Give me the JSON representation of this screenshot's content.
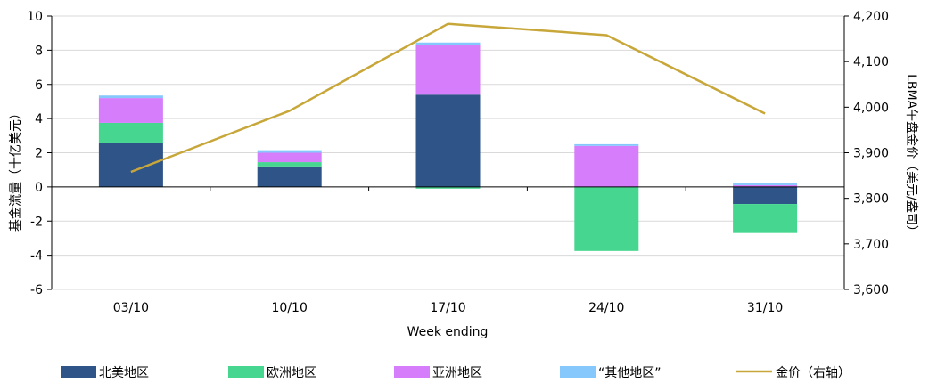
{
  "chart_data": {
    "type": "bar",
    "stacked": true,
    "categories": [
      "03/10",
      "10/10",
      "17/10",
      "24/10",
      "31/10"
    ],
    "xlabel": "Week ending",
    "ylabel": "基金流量（十亿美元）",
    "y2label": "LBMA午盘金价（美元/盎司）",
    "ylim": [
      -6,
      10
    ],
    "yticks": [
      -6,
      -4,
      -2,
      0,
      2,
      4,
      6,
      8,
      10
    ],
    "y2lim": [
      3600,
      4200
    ],
    "y2ticks": [
      "3,600",
      "3,700",
      "3,800",
      "3,900",
      "4,000",
      "4,100",
      "4,200"
    ],
    "y2tick_values": [
      3600,
      3700,
      3800,
      3900,
      4000,
      4100,
      4200
    ],
    "grid": true,
    "legend_position": "bottom",
    "series": [
      {
        "name": "北美地区",
        "color": "#2f5488",
        "values": [
          2.6,
          1.2,
          5.4,
          0.0,
          -1.0
        ]
      },
      {
        "name": "欧洲地区",
        "color": "#47d690",
        "values": [
          1.15,
          0.25,
          -0.1,
          -3.75,
          -1.7
        ]
      },
      {
        "name": "亚洲地区",
        "color": "#d57dfb",
        "values": [
          1.45,
          0.55,
          2.9,
          2.4,
          0.1
        ]
      },
      {
        "name": "“其他地区”",
        "color": "#86c8fb",
        "values": [
          0.15,
          0.15,
          0.15,
          0.1,
          0.1
        ]
      }
    ],
    "line_series": {
      "name": "金价（右轴）",
      "color": "#c8a73a",
      "axis": "right",
      "values": [
        3858,
        3992,
        4183,
        4158,
        3986
      ]
    }
  }
}
